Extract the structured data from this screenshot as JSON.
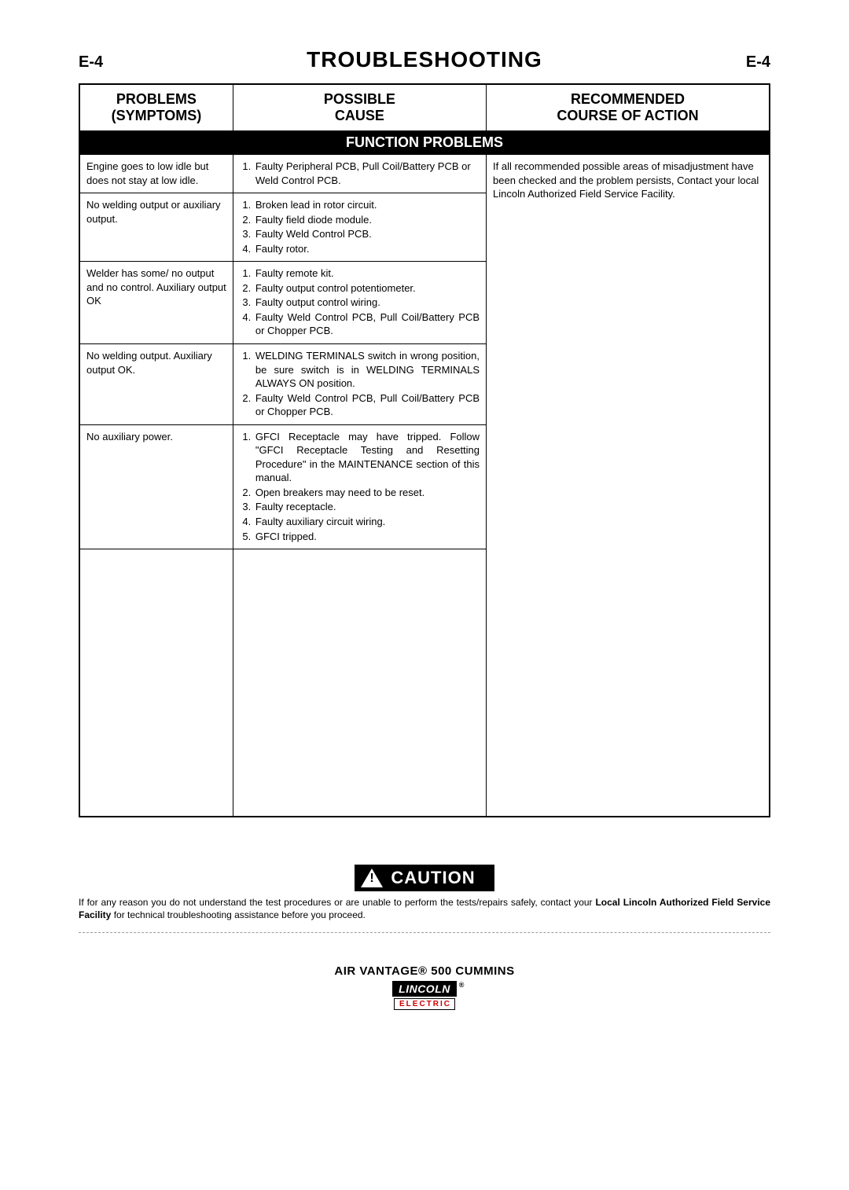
{
  "header": {
    "left": "E-4",
    "title": "TROUBLESHOOTING",
    "right": "E-4"
  },
  "table": {
    "columns": [
      "PROBLEMS\n(SYMPTOMS)",
      "POSSIBLE\nCAUSE",
      "RECOMMENDED\nCOURSE OF ACTION"
    ],
    "section_title": "FUNCTION PROBLEMS",
    "rows": [
      {
        "problem": "Engine goes to low idle but does not stay at low idle.",
        "causes": [
          "Faulty Peripheral PCB, Pull Coil/Battery PCB or Weld Control PCB."
        ]
      },
      {
        "problem": "No welding output or auxiliary output.",
        "causes": [
          "Broken lead in rotor circuit.",
          "Faulty field diode module.",
          "Faulty Weld Control PCB.",
          "Faulty rotor."
        ]
      },
      {
        "problem": "Welder has some/ no output and no control. Auxiliary output OK",
        "causes": [
          "Faulty remote kit.",
          "Faulty output control potentiometer.",
          "Faulty output control wiring.",
          "Faulty Weld Control PCB, Pull Coil/Battery PCB or Chopper PCB."
        ]
      },
      {
        "problem": "No welding output. Auxiliary output OK.",
        "causes": [
          "WELDING TERMINALS switch in wrong position, be sure switch is in WELDING TERMINALS ALWAYS ON position.",
          "Faulty Weld Control PCB, Pull Coil/Battery PCB or Chopper PCB."
        ]
      },
      {
        "problem": "No auxiliary power.",
        "causes": [
          "GFCI Receptacle may have tripped. Follow \"GFCI Receptacle Testing and Resetting Procedure\" in the MAINTENANCE section of this manual.",
          "Open breakers may need to be reset.",
          "Faulty receptacle.",
          "Faulty auxiliary circuit wiring.",
          "GFCI tripped."
        ]
      }
    ],
    "action": "If all recommended possible areas of misadjustment have been checked and the problem persists, Contact your local Lincoln Authorized Field Service Facility."
  },
  "caution": {
    "label": "CAUTION",
    "text_before": "If for any reason you do not understand the test procedures or are unable to perform the tests/repairs safely, contact your ",
    "bold": "Local Lincoln Authorized Field Service Facility",
    "text_after": " for technical troubleshooting assistance before you proceed."
  },
  "footer": {
    "product": "AIR VANTAGE® 500 CUMMINS",
    "logo_top": "LINCOLN",
    "logo_bottom": "ELECTRIC"
  },
  "colors": {
    "text": "#000000",
    "background": "#ffffff",
    "inverse_bg": "#000000",
    "inverse_text": "#ffffff",
    "logo_red": "#c00000",
    "divider": "#999999"
  }
}
